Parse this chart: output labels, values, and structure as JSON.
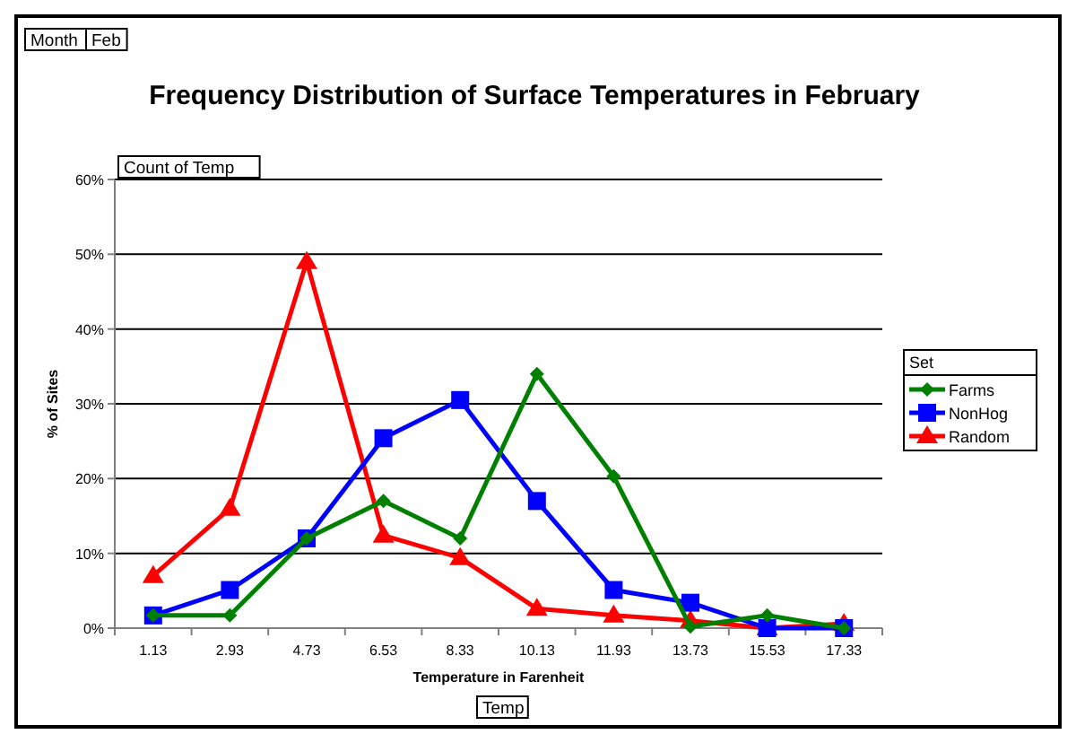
{
  "chart_data": {
    "type": "line",
    "title": "Frequency Distribution of Surface Temperatures in February",
    "xlabel": "Temperature in Farenheit",
    "ylabel": "% of Sites",
    "legend_title": "Set",
    "annotations": [
      "Month",
      "Feb",
      "Count of Temp",
      "Temp"
    ],
    "categories": [
      "1.13",
      "2.93",
      "4.73",
      "6.53",
      "8.33",
      "10.13",
      "11.93",
      "13.73",
      "15.53",
      "17.33"
    ],
    "series": [
      {
        "name": "Farms",
        "color": "#008000",
        "marker": "diamond",
        "values": [
          1.7,
          1.7,
          12,
          17,
          12,
          34,
          20.3,
          0.2,
          1.7,
          0
        ]
      },
      {
        "name": "NonHog",
        "color": "#0000ff",
        "marker": "square",
        "values": [
          1.7,
          5.1,
          12,
          25.4,
          30.5,
          17,
          5.1,
          3.4,
          0,
          0
        ]
      },
      {
        "name": "Random",
        "color": "#ff0000",
        "marker": "triangle",
        "values": [
          7,
          16,
          49,
          12.4,
          9.4,
          2.6,
          1.7,
          1,
          0,
          0.6
        ]
      }
    ],
    "ylim": [
      0,
      60
    ],
    "yticks": [
      {
        "value": 0,
        "label": "0%"
      },
      {
        "value": 10,
        "label": "10%"
      },
      {
        "value": 20,
        "label": "20%"
      },
      {
        "value": 30,
        "label": "30%"
      },
      {
        "value": 40,
        "label": "40%"
      },
      {
        "value": 50,
        "label": "50%"
      },
      {
        "value": 60,
        "label": "60%"
      }
    ],
    "grid": "y",
    "legend": "right",
    "line_style": "solid"
  }
}
